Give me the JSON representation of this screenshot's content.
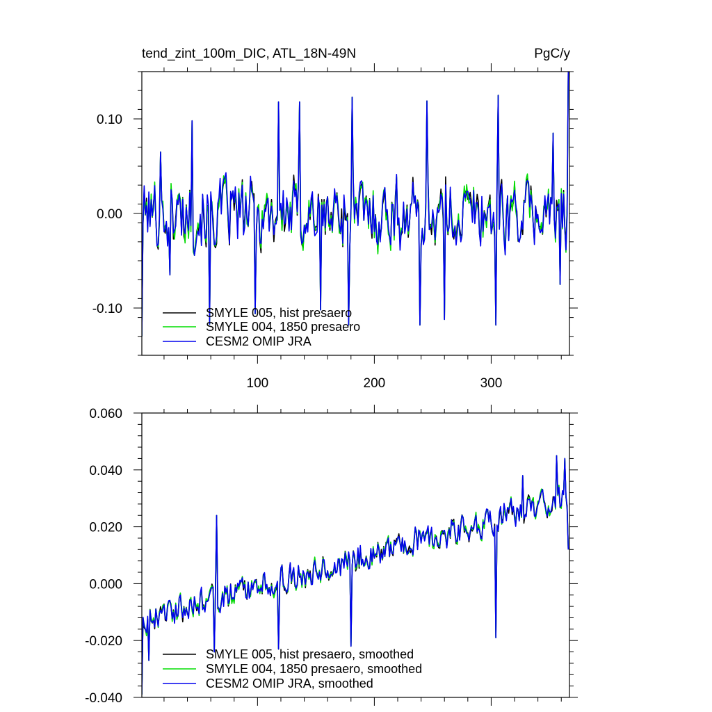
{
  "chart_data": [
    {
      "type": "line",
      "title": "tend_zint_100m_DIC, ATL_18N-49N",
      "units": "PgC/y",
      "xlim": [
        1,
        367
      ],
      "ylim": [
        -0.15,
        0.15
      ],
      "xticks": [
        100,
        200,
        300
      ],
      "xtick_labels": [
        "100",
        "200",
        "300"
      ],
      "yticks": [
        -0.1,
        0.0,
        0.1
      ],
      "ytick_labels": [
        "-0.10",
        "0.00",
        "0.10"
      ],
      "grid": false,
      "legend_position": "bottom-left",
      "series": [
        {
          "name": "SMYLE 005, hist presaero",
          "color": "#000000",
          "seed": 11
        },
        {
          "name": "SMYLE 004, 1850 presaero",
          "color": "#00dd00",
          "seed": 12
        },
        {
          "name": "CESM2 OMIP JRA",
          "color": "#0000ee",
          "seed": 13
        }
      ],
      "shape": {
        "n": 366,
        "start": -0.13,
        "amplitude": 0.048,
        "trend_end": 0.0,
        "spikes": [
          [
            17,
            0.065
          ],
          [
            25,
            -0.065
          ],
          [
            44,
            0.098
          ],
          [
            59,
            -0.117
          ],
          [
            98,
            -0.106
          ],
          [
            118,
            0.118
          ],
          [
            136,
            0.118
          ],
          [
            154,
            -0.102
          ],
          [
            178,
            -0.118
          ],
          [
            181,
            0.123
          ],
          [
            239,
            -0.118
          ],
          [
            245,
            0.119
          ],
          [
            260,
            -0.112
          ],
          [
            304,
            -0.118
          ],
          [
            306,
            0.125
          ],
          [
            353,
            0.085
          ],
          [
            359,
            -0.075
          ],
          [
            366,
            0.15
          ]
        ]
      }
    },
    {
      "type": "line",
      "title": "",
      "units": "",
      "xlim": [
        1,
        367
      ],
      "ylim": [
        -0.04,
        0.06
      ],
      "xticks": [
        100,
        200,
        300
      ],
      "xtick_labels": [],
      "yticks": [
        -0.04,
        -0.02,
        0.0,
        0.02,
        0.04,
        0.06
      ],
      "ytick_labels": [
        "-0.040",
        "-0.020",
        "0.000",
        "0.020",
        "0.040",
        "0.060"
      ],
      "grid": false,
      "legend_position": "bottom-left",
      "series": [
        {
          "name": "SMYLE 005, hist presaero, smoothed",
          "color": "#000000",
          "seed": 21
        },
        {
          "name": "SMYLE 004, 1850 presaero, smoothed",
          "color": "#00dd00",
          "seed": 22
        },
        {
          "name": "CESM2 OMIP JRA, smoothed",
          "color": "#0000ee",
          "seed": 23
        }
      ],
      "shape": {
        "n": 366,
        "start": -0.039,
        "amplitude": 0.007,
        "trend_start": -0.012,
        "trend_end": 0.03,
        "spikes": [
          [
            7,
            -0.027
          ],
          [
            63,
            -0.024
          ],
          [
            65,
            0.024
          ],
          [
            118,
            -0.023
          ],
          [
            180,
            -0.022
          ],
          [
            304,
            -0.019
          ],
          [
            327,
            0.038
          ],
          [
            356,
            0.045
          ],
          [
            363,
            0.044
          ],
          [
            366,
            0.012
          ]
        ]
      }
    }
  ]
}
